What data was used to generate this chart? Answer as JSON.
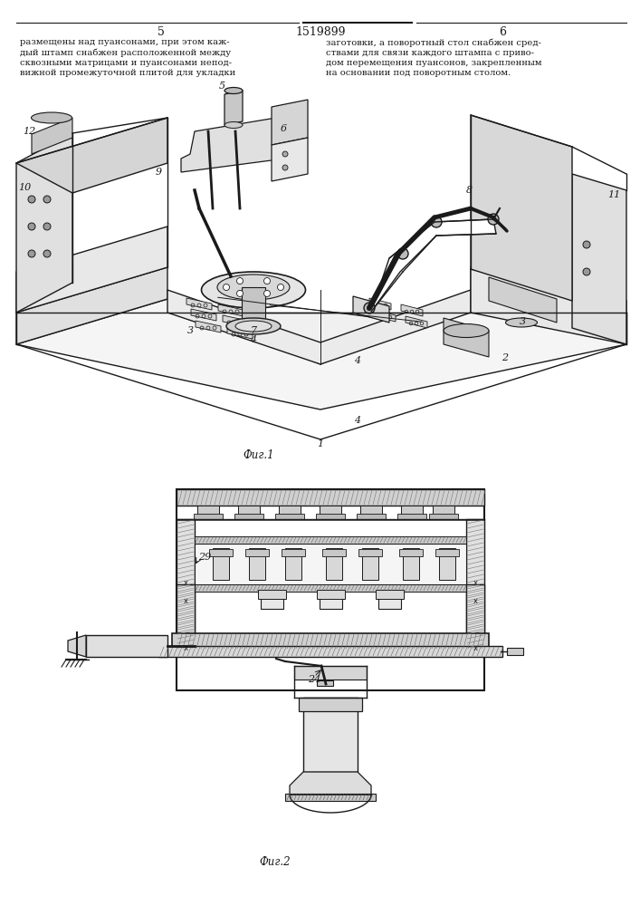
{
  "title": "1519899",
  "page_left": "5",
  "page_right": "6",
  "fig1_label": "Фиг.1",
  "fig2_label": "Фиг.2",
  "text_left": "размещены над пуансонами, при этом каж-\nдый штамп снабжен расположенной между\nсквозными матрицами и пуансонами непод-\nвижной промежуточной плитой для укладки",
  "text_right": "заготовки, а поворотный стол снабжен сред-\nствами для связи каждого штампа с приво-\nдом перемещения пуансонов, закрепленным\nна основании под поворотным столом.",
  "bg_color": "#ffffff",
  "line_color": "#1a1a1a",
  "text_color": "#1a1a1a"
}
